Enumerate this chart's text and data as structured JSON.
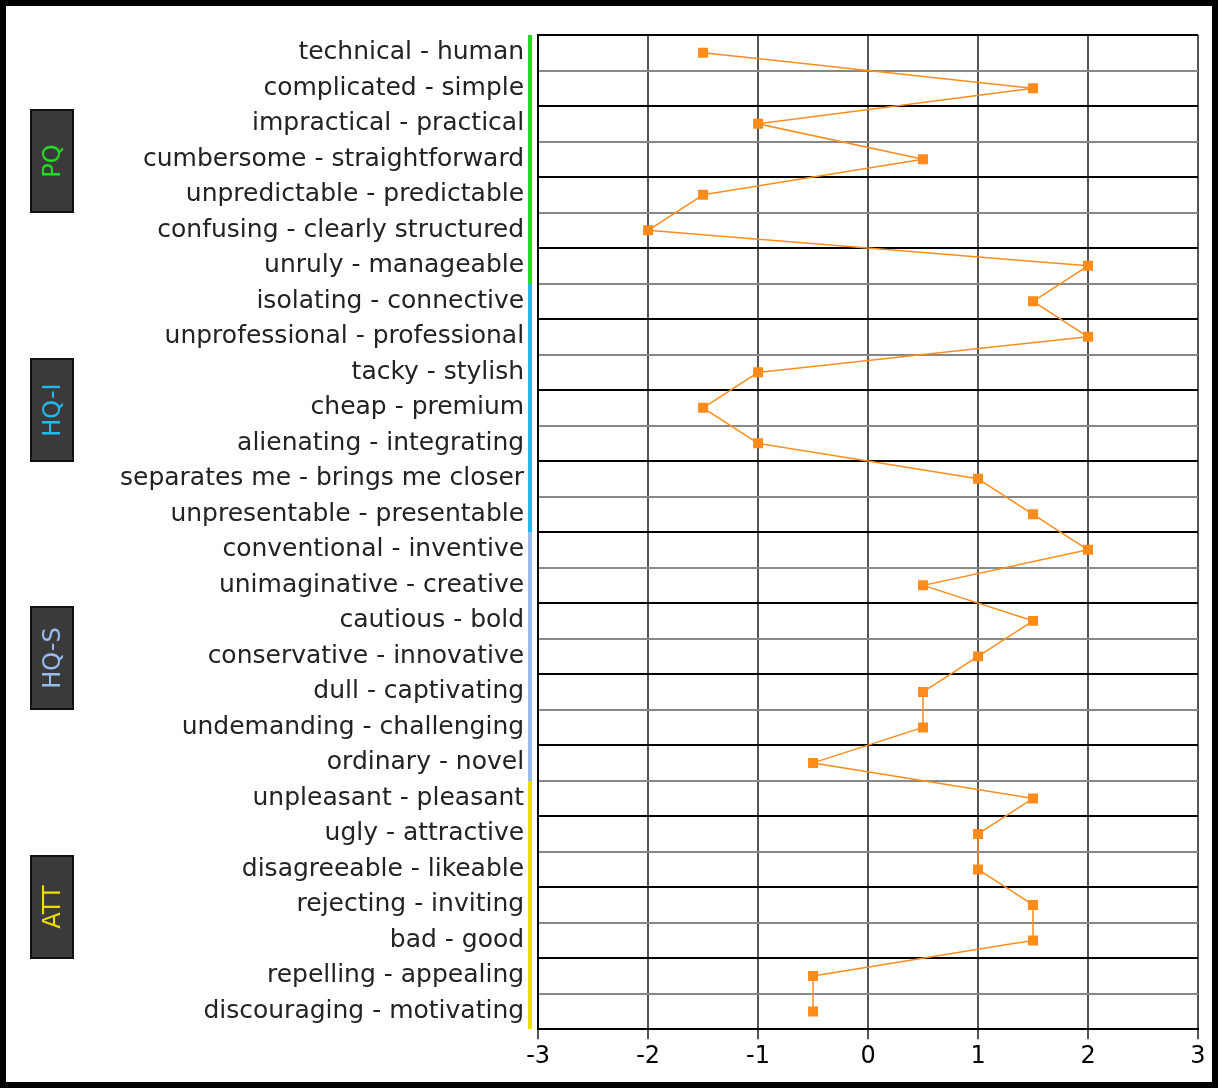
{
  "chart_data": {
    "type": "line",
    "orientation": "horizontal",
    "categories": [
      "technical - human",
      "complicated - simple",
      "impractical - practical",
      "cumbersome - straightforward",
      "unpredictable - predictable",
      "confusing - clearly structured",
      "unruly - manageable",
      "isolating - connective",
      "unprofessional - professional",
      "tacky - stylish",
      "cheap - premium",
      "alienating - integrating",
      "separates me - brings me closer",
      "unpresentable - presentable",
      "conventional - inventive",
      "unimaginative - creative",
      "cautious - bold",
      "conservative - innovative",
      "dull - captivating",
      "undemanding - challenging",
      "ordinary - novel",
      "unpleasant - pleasant",
      "ugly - attractive",
      "disagreeable - likeable",
      "rejecting - inviting",
      "bad - good",
      "repelling - appealing",
      "discouraging - motivating"
    ],
    "series": [
      {
        "color": "#ff8c1a",
        "values": [
          -1.5,
          1.5,
          -1,
          0.5,
          -1.5,
          -2,
          2,
          1.5,
          2,
          -1,
          -1.5,
          -1,
          1,
          1.5,
          2,
          0.5,
          1.5,
          1,
          0.5,
          0.5,
          -0.5,
          1.5,
          1,
          1,
          1.5,
          1.5,
          -0.5,
          -0.5
        ]
      }
    ],
    "xlim": [
      -3,
      3
    ],
    "xticks": [
      -3,
      -2,
      -1,
      0,
      1,
      2,
      3
    ],
    "annotations": [
      "PQ",
      "HQ-I",
      "HQ-S",
      "ATT"
    ],
    "grid": true,
    "marker": "square",
    "line_style": "solid",
    "legend": false
  }
}
